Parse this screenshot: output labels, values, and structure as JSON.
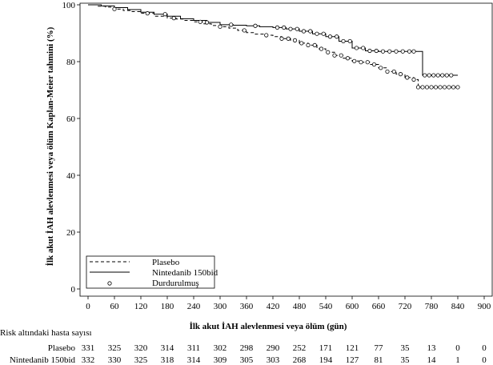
{
  "chart_data": {
    "type": "line",
    "subtype": "kaplan-meier",
    "xlabel": "İlk akut İAH alevlenmesi veya ölüm (gün)",
    "ylabel": "İlk akut İAH alevlenmesi veya ölüm Kaplan-Meier tahmini (%)",
    "xlim": [
      0,
      900
    ],
    "ylim": [
      0,
      100
    ],
    "x_ticks": [
      0,
      60,
      120,
      180,
      240,
      300,
      360,
      420,
      480,
      540,
      600,
      660,
      720,
      780,
      840,
      900
    ],
    "y_ticks": [
      0,
      20,
      40,
      60,
      80,
      100
    ],
    "legend": {
      "position": "bottom-left",
      "entries": [
        {
          "label": "Plasebo",
          "style": "dashed"
        },
        {
          "label": "Nintedanib 150bid",
          "style": "solid"
        },
        {
          "label": "Durdurulmuş",
          "style": "circle-marker"
        }
      ]
    },
    "series": [
      {
        "name": "Plasebo",
        "style": "dashed",
        "x": [
          0,
          20,
          40,
          60,
          80,
          100,
          120,
          150,
          180,
          200,
          220,
          240,
          260,
          280,
          300,
          320,
          340,
          360,
          380,
          400,
          420,
          440,
          460,
          480,
          500,
          520,
          540,
          560,
          580,
          600,
          620,
          640,
          660,
          680,
          700,
          720,
          740,
          750,
          800,
          840
        ],
        "y": [
          100,
          99.5,
          99.2,
          98.5,
          98.0,
          97.6,
          97.0,
          96.0,
          95.3,
          95.0,
          94.5,
          94.0,
          93.3,
          92.7,
          92.3,
          91.8,
          91.0,
          90.2,
          89.7,
          89.3,
          88.8,
          88.1,
          87.5,
          86.5,
          85.8,
          84.5,
          83.3,
          82.2,
          81.2,
          80.2,
          79.8,
          79.0,
          77.8,
          76.5,
          75.6,
          74.4,
          73.7,
          71.0,
          71.0,
          71.0
        ]
      },
      {
        "name": "Nintedanib 150bid",
        "style": "solid",
        "x": [
          0,
          30,
          60,
          90,
          120,
          150,
          180,
          210,
          240,
          270,
          300,
          330,
          360,
          390,
          420,
          450,
          480,
          510,
          540,
          570,
          600,
          630,
          660,
          690,
          720,
          750,
          760,
          800,
          840
        ],
        "y": [
          100,
          99.6,
          99.0,
          98.3,
          97.4,
          96.7,
          96.0,
          95.1,
          94.5,
          93.8,
          93.0,
          92.8,
          92.6,
          92.3,
          92.0,
          91.5,
          90.7,
          89.8,
          88.8,
          87.2,
          84.8,
          83.8,
          83.6,
          83.6,
          83.6,
          83.6,
          75.2,
          75.2,
          75.2
        ]
      }
    ],
    "censored": [
      {
        "series": "Plasebo",
        "x": [
          60,
          135,
          195,
          255,
          300,
          355,
          405,
          440,
          455,
          470,
          485,
          500,
          515,
          530,
          545,
          560,
          575,
          590,
          605,
          620,
          635,
          650,
          665,
          680,
          695,
          710,
          725,
          740,
          750,
          760,
          770,
          780,
          790,
          800,
          810,
          820,
          830,
          840
        ]
      },
      {
        "series": "Nintedanib 150bid",
        "x": [
          175,
          270,
          325,
          380,
          430,
          445,
          460,
          475,
          490,
          505,
          520,
          535,
          550,
          565,
          580,
          595,
          610,
          625,
          640,
          655,
          670,
          685,
          700,
          715,
          730,
          740,
          765,
          775,
          785,
          795,
          805,
          815,
          825
        ]
      }
    ]
  },
  "risk_table": {
    "title": "Risk altındaki hasta sayısı",
    "rows": [
      {
        "label": "Plasebo",
        "values": [
          "331",
          "325",
          "320",
          "314",
          "311",
          "302",
          "298",
          "290",
          "252",
          "171",
          "121",
          "77",
          "35",
          "13",
          "0",
          "0"
        ]
      },
      {
        "label": "Nintedanib 150bid",
        "values": [
          "332",
          "330",
          "325",
          "318",
          "314",
          "309",
          "305",
          "303",
          "268",
          "194",
          "127",
          "81",
          "35",
          "14",
          "1",
          "0"
        ]
      }
    ]
  }
}
